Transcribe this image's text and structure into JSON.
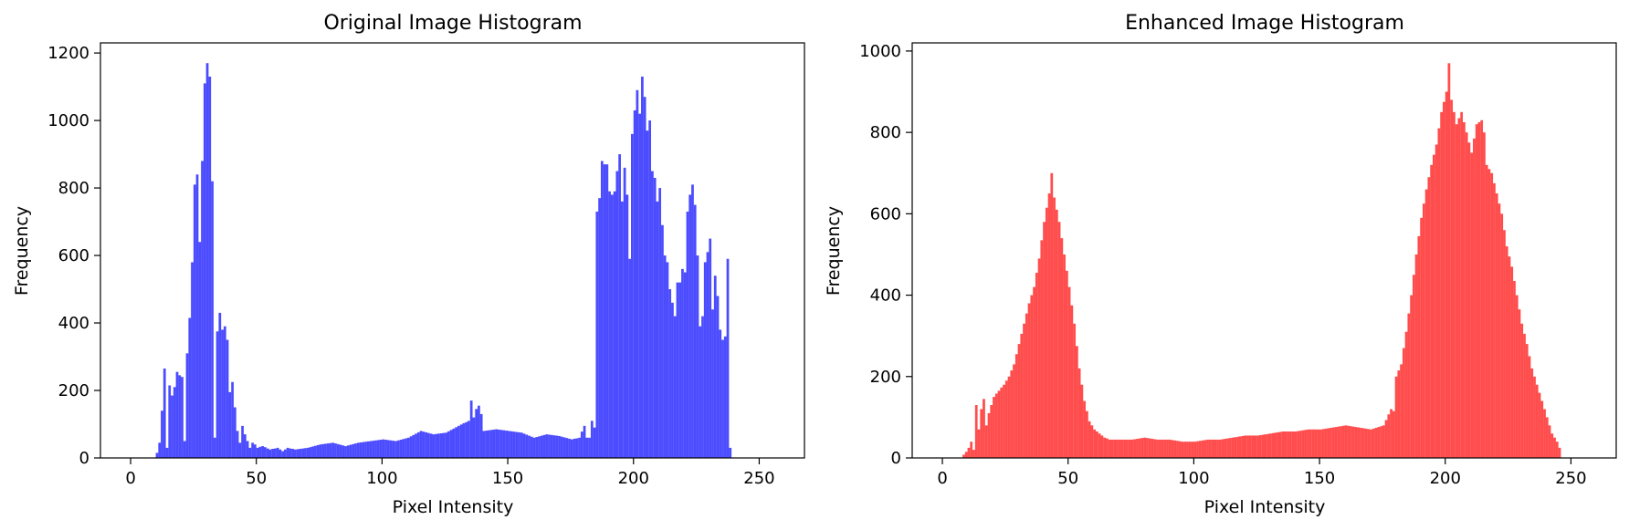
{
  "chart_data": [
    {
      "type": "bar",
      "title": "Original Image Histogram",
      "xlabel": "Pixel Intensity",
      "ylabel": "Frequency",
      "xlim": [
        -12,
        268
      ],
      "ylim": [
        0,
        1230
      ],
      "xticks": [
        0,
        50,
        100,
        150,
        200,
        250
      ],
      "yticks": [
        0,
        200,
        400,
        600,
        800,
        1000,
        1200
      ],
      "color": "#0000ff",
      "opacity": 0.7,
      "bin_width": 1,
      "anchors": [
        [
          0,
          0
        ],
        [
          9,
          0
        ],
        [
          10,
          15
        ],
        [
          11,
          45
        ],
        [
          12,
          140
        ],
        [
          13,
          265
        ],
        [
          14,
          30
        ],
        [
          15,
          215
        ],
        [
          16,
          185
        ],
        [
          17,
          210
        ],
        [
          18,
          255
        ],
        [
          19,
          245
        ],
        [
          20,
          240
        ],
        [
          21,
          50
        ],
        [
          22,
          310
        ],
        [
          23,
          415
        ],
        [
          24,
          580
        ],
        [
          25,
          810
        ],
        [
          26,
          840
        ],
        [
          27,
          640
        ],
        [
          28,
          880
        ],
        [
          29,
          1110
        ],
        [
          30,
          1170
        ],
        [
          31,
          1130
        ],
        [
          32,
          820
        ],
        [
          33,
          60
        ],
        [
          34,
          375
        ],
        [
          35,
          430
        ],
        [
          36,
          380
        ],
        [
          37,
          390
        ],
        [
          38,
          350
        ],
        [
          39,
          195
        ],
        [
          40,
          225
        ],
        [
          41,
          150
        ],
        [
          42,
          80
        ],
        [
          43,
          45
        ],
        [
          44,
          95
        ],
        [
          45,
          70
        ],
        [
          46,
          50
        ],
        [
          47,
          30
        ],
        [
          48,
          45
        ],
        [
          49,
          40
        ],
        [
          50,
          30
        ],
        [
          52,
          35
        ],
        [
          55,
          25
        ],
        [
          58,
          30
        ],
        [
          60,
          20
        ],
        [
          62,
          30
        ],
        [
          65,
          25
        ],
        [
          70,
          30
        ],
        [
          75,
          40
        ],
        [
          80,
          45
        ],
        [
          85,
          35
        ],
        [
          90,
          45
        ],
        [
          95,
          50
        ],
        [
          100,
          55
        ],
        [
          105,
          50
        ],
        [
          110,
          60
        ],
        [
          115,
          80
        ],
        [
          120,
          70
        ],
        [
          125,
          75
        ],
        [
          130,
          95
        ],
        [
          134,
          110
        ],
        [
          135,
          170
        ],
        [
          136,
          120
        ],
        [
          137,
          145
        ],
        [
          138,
          155
        ],
        [
          139,
          130
        ],
        [
          140,
          80
        ],
        [
          145,
          85
        ],
        [
          150,
          80
        ],
        [
          155,
          75
        ],
        [
          160,
          60
        ],
        [
          165,
          70
        ],
        [
          170,
          65
        ],
        [
          175,
          55
        ],
        [
          178,
          60
        ],
        [
          180,
          95
        ],
        [
          181,
          60
        ],
        [
          182,
          60
        ],
        [
          183,
          110
        ],
        [
          184,
          90
        ],
        [
          185,
          730
        ],
        [
          186,
          770
        ],
        [
          187,
          880
        ],
        [
          188,
          870
        ],
        [
          189,
          870
        ],
        [
          190,
          790
        ],
        [
          191,
          780
        ],
        [
          192,
          790
        ],
        [
          193,
          850
        ],
        [
          194,
          900
        ],
        [
          195,
          760
        ],
        [
          196,
          860
        ],
        [
          197,
          780
        ],
        [
          198,
          590
        ],
        [
          199,
          960
        ],
        [
          200,
          1030
        ],
        [
          201,
          1090
        ],
        [
          202,
          1020
        ],
        [
          203,
          1130
        ],
        [
          204,
          1070
        ],
        [
          205,
          970
        ],
        [
          206,
          1000
        ],
        [
          207,
          850
        ],
        [
          208,
          830
        ],
        [
          209,
          760
        ],
        [
          210,
          800
        ],
        [
          211,
          690
        ],
        [
          212,
          600
        ],
        [
          213,
          580
        ],
        [
          214,
          500
        ],
        [
          215,
          460
        ],
        [
          216,
          420
        ],
        [
          217,
          520
        ],
        [
          218,
          520
        ],
        [
          219,
          560
        ],
        [
          220,
          550
        ],
        [
          221,
          730
        ],
        [
          222,
          780
        ],
        [
          223,
          810
        ],
        [
          224,
          750
        ],
        [
          225,
          600
        ],
        [
          226,
          390
        ],
        [
          227,
          420
        ],
        [
          228,
          580
        ],
        [
          229,
          610
        ],
        [
          230,
          650
        ],
        [
          231,
          440
        ],
        [
          232,
          540
        ],
        [
          233,
          480
        ],
        [
          234,
          380
        ],
        [
          235,
          350
        ],
        [
          236,
          360
        ],
        [
          237,
          590
        ],
        [
          238,
          30
        ],
        [
          239,
          0
        ],
        [
          255,
          0
        ]
      ]
    },
    {
      "type": "bar",
      "title": "Enhanced Image Histogram",
      "xlabel": "Pixel Intensity",
      "ylabel": "Frequency",
      "xlim": [
        -12,
        268
      ],
      "ylim": [
        0,
        1020
      ],
      "xticks": [
        0,
        50,
        100,
        150,
        200,
        250
      ],
      "yticks": [
        0,
        200,
        400,
        600,
        800,
        1000
      ],
      "color": "#ff0000",
      "opacity": 0.7,
      "bin_width": 1,
      "anchors": [
        [
          0,
          0
        ],
        [
          7,
          0
        ],
        [
          8,
          8
        ],
        [
          9,
          15
        ],
        [
          10,
          25
        ],
        [
          11,
          40
        ],
        [
          12,
          20
        ],
        [
          13,
          130
        ],
        [
          14,
          70
        ],
        [
          15,
          120
        ],
        [
          16,
          145
        ],
        [
          17,
          80
        ],
        [
          18,
          110
        ],
        [
          19,
          130
        ],
        [
          20,
          150
        ],
        [
          22,
          165
        ],
        [
          24,
          180
        ],
        [
          26,
          200
        ],
        [
          28,
          230
        ],
        [
          30,
          280
        ],
        [
          32,
          330
        ],
        [
          34,
          380
        ],
        [
          36,
          420
        ],
        [
          38,
          490
        ],
        [
          40,
          580
        ],
        [
          42,
          650
        ],
        [
          43,
          700
        ],
        [
          44,
          640
        ],
        [
          46,
          580
        ],
        [
          48,
          500
        ],
        [
          50,
          420
        ],
        [
          52,
          330
        ],
        [
          54,
          220
        ],
        [
          56,
          140
        ],
        [
          58,
          90
        ],
        [
          60,
          70
        ],
        [
          62,
          60
        ],
        [
          64,
          50
        ],
        [
          66,
          45
        ],
        [
          70,
          45
        ],
        [
          75,
          45
        ],
        [
          80,
          50
        ],
        [
          85,
          45
        ],
        [
          90,
          45
        ],
        [
          95,
          40
        ],
        [
          100,
          40
        ],
        [
          105,
          45
        ],
        [
          110,
          45
        ],
        [
          115,
          50
        ],
        [
          120,
          55
        ],
        [
          125,
          55
        ],
        [
          130,
          60
        ],
        [
          135,
          65
        ],
        [
          140,
          65
        ],
        [
          145,
          70
        ],
        [
          150,
          70
        ],
        [
          155,
          75
        ],
        [
          160,
          80
        ],
        [
          165,
          75
        ],
        [
          170,
          70
        ],
        [
          175,
          80
        ],
        [
          178,
          120
        ],
        [
          179,
          115
        ],
        [
          180,
          200
        ],
        [
          182,
          230
        ],
        [
          184,
          310
        ],
        [
          186,
          400
        ],
        [
          188,
          500
        ],
        [
          190,
          590
        ],
        [
          192,
          660
        ],
        [
          194,
          720
        ],
        [
          196,
          770
        ],
        [
          198,
          850
        ],
        [
          200,
          900
        ],
        [
          201,
          970
        ],
        [
          202,
          880
        ],
        [
          204,
          820
        ],
        [
          206,
          850
        ],
        [
          208,
          800
        ],
        [
          210,
          750
        ],
        [
          212,
          820
        ],
        [
          214,
          830
        ],
        [
          215,
          800
        ],
        [
          216,
          720
        ],
        [
          218,
          700
        ],
        [
          220,
          650
        ],
        [
          222,
          600
        ],
        [
          224,
          520
        ],
        [
          226,
          470
        ],
        [
          228,
          400
        ],
        [
          230,
          330
        ],
        [
          232,
          280
        ],
        [
          234,
          220
        ],
        [
          236,
          180
        ],
        [
          238,
          140
        ],
        [
          240,
          100
        ],
        [
          242,
          60
        ],
        [
          244,
          40
        ],
        [
          245,
          25
        ],
        [
          246,
          0
        ],
        [
          255,
          0
        ]
      ]
    }
  ]
}
